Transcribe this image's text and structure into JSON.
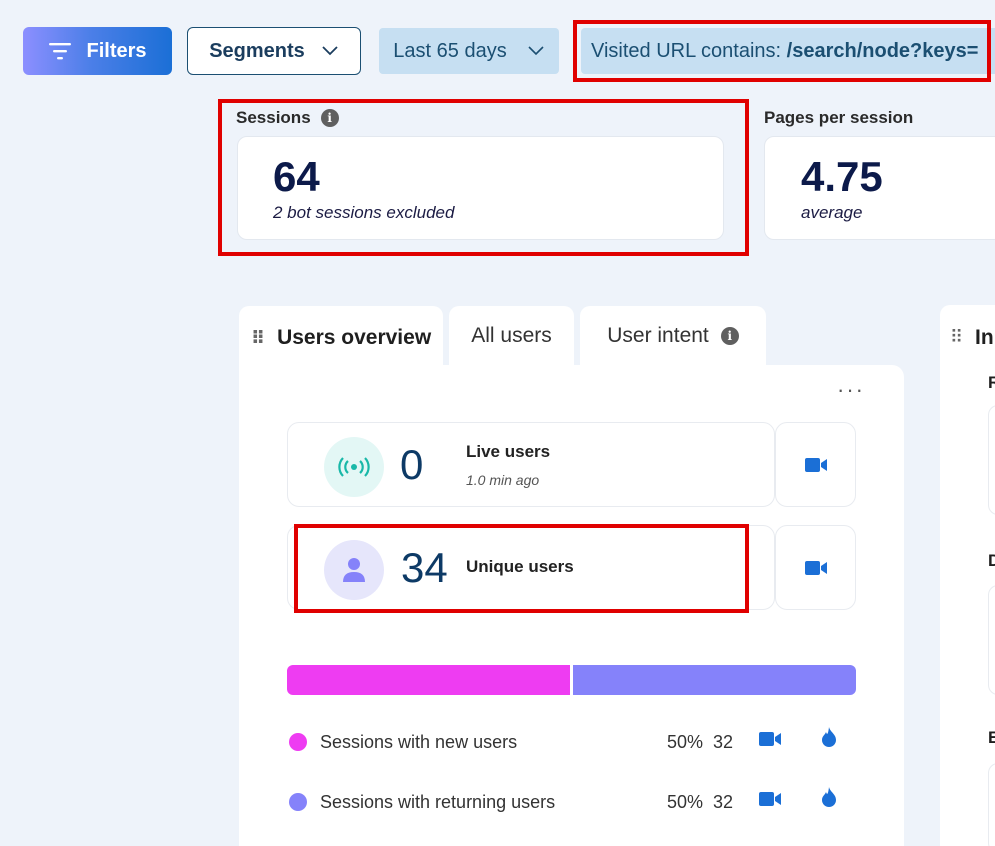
{
  "toolbar": {
    "filters_label": "Filters",
    "segments_label": "Segments",
    "date_range": "Last 65 days",
    "url_filter_prefix": "Visited URL contains: ",
    "url_filter_value": "/search/node?keys="
  },
  "kpis": {
    "sessions": {
      "label": "Sessions",
      "value": "64",
      "sub": "2 bot sessions excluded"
    },
    "pages_per_session": {
      "label": "Pages per session",
      "value": "4.75",
      "sub": "average"
    }
  },
  "tabs": [
    {
      "label": "Users overview"
    },
    {
      "label": "All users"
    },
    {
      "label": "User intent"
    }
  ],
  "right_panel": {
    "tab_label_partial": "In",
    "section_letters": [
      "R",
      "D",
      "E"
    ]
  },
  "users": {
    "more_label": "···",
    "live": {
      "value": "0",
      "label": "Live users",
      "sub": "1.0 min ago"
    },
    "unique": {
      "value": "34",
      "label": "Unique users"
    }
  },
  "session_split": {
    "bar": [
      {
        "fraction": 0.5,
        "color": "#ee3cf2"
      },
      {
        "fraction": 0.5,
        "color": "#8582fa"
      }
    ],
    "rows": [
      {
        "label": "Sessions with new users",
        "percent": "50%",
        "count": "32",
        "color": "#ee3cf2"
      },
      {
        "label": "Sessions with returning users",
        "percent": "50%",
        "count": "32",
        "color": "#8582fa"
      }
    ]
  },
  "colors": {
    "accent": "#1b6fd6",
    "highlight": "#e00000",
    "live_icon": "#19b8a8"
  }
}
